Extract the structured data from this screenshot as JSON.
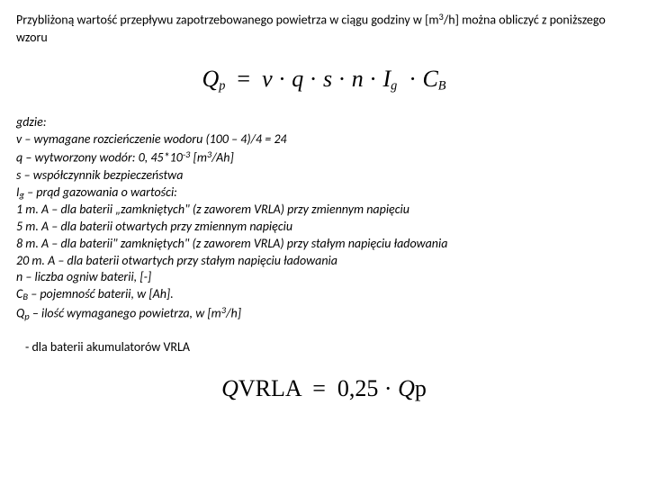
{
  "intro": {
    "text_pre": "Przybliżoną wartość przepływu zapotrzebowanego powietrza w ciągu godziny w [m",
    "sup": "3",
    "text_post": "/h] można obliczyć z poniższego wzoru"
  },
  "formula1": {
    "lhs_sym": "Q",
    "lhs_sub": "p",
    "rhs_parts": [
      "v",
      "q",
      "s",
      "n",
      "I"
    ],
    "rhs_I_sub": "g",
    "rhs_last_sym": "C",
    "rhs_last_sub": "B",
    "dot": "·",
    "eq": "="
  },
  "defs": {
    "gdzie": "gdzie:",
    "v": "v – wymagane rozcieńczenie wodoru (100 – 4)/4 = 24",
    "q_pre": "q – wytworzony wodór: 0, 45*10",
    "q_sup": "-3",
    "q_mid": " [m",
    "q_sup2": "3",
    "q_post": "/Ah]",
    "s": "s – współczynnik bezpieczeństwa",
    "Ig_pre": "I",
    "Ig_sub": "g",
    "Ig_post": " – prąd gazowania o wartości:",
    "l1": "1 m. A – dla baterii „zamkniętych\" (z zaworem VRLA) przy zmiennym napięciu",
    "l2": "5 m. A – dla baterii otwartych przy zmiennym napięciu",
    "l3": "8 m. A – dla baterii\" zamkniętych\" (z zaworem VRLA)   przy stałym napięciu ładowania",
    "l4": "20 m. A – dla baterii otwartych przy stałym napięciu ładowania",
    "n": "n – liczba ogniw baterii, [-]",
    "CB_pre": "C",
    "CB_sub": "B",
    "CB_post": " – pojemność baterii, w [Ah].",
    "Qp_pre": "Q",
    "Qp_sub": "p",
    "Qp_mid": " – ilość wymaganego powietrza, w [m",
    "Qp_sup": "3",
    "Qp_post": "/h]"
  },
  "note": "- dla baterii akumulatorów VRLA",
  "formula2": {
    "lhs_sym": "Q",
    "lhs_sub": "VRLA",
    "eq": "=",
    "coef": "0,25",
    "dot": "·",
    "rhs_sym": "Q",
    "rhs_sub": "p"
  }
}
